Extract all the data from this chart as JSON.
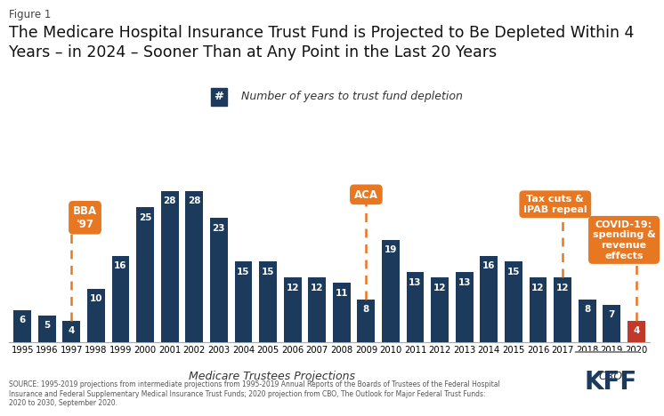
{
  "years": [
    "1995",
    "1996",
    "1997",
    "1998",
    "1999",
    "2000",
    "2001",
    "2002",
    "2003",
    "2004",
    "2005",
    "2006",
    "2007",
    "2008",
    "2009",
    "2010",
    "2011",
    "2012",
    "2013",
    "2014",
    "2015",
    "2016",
    "2017",
    "2018",
    "2019",
    "2020"
  ],
  "values": [
    6,
    5,
    4,
    10,
    16,
    25,
    28,
    28,
    23,
    15,
    15,
    12,
    12,
    11,
    8,
    19,
    13,
    12,
    13,
    16,
    15,
    12,
    12,
    8,
    7,
    4
  ],
  "bar_colors": [
    "#1b3a5c",
    "#1b3a5c",
    "#1b3a5c",
    "#1b3a5c",
    "#1b3a5c",
    "#1b3a5c",
    "#1b3a5c",
    "#1b3a5c",
    "#1b3a5c",
    "#1b3a5c",
    "#1b3a5c",
    "#1b3a5c",
    "#1b3a5c",
    "#1b3a5c",
    "#1b3a5c",
    "#1b3a5c",
    "#1b3a5c",
    "#1b3a5c",
    "#1b3a5c",
    "#1b3a5c",
    "#1b3a5c",
    "#1b3a5c",
    "#1b3a5c",
    "#1b3a5c",
    "#1b3a5c",
    "#c0392b"
  ],
  "figure_label": "Figure 1",
  "title_line1": "The Medicare Hospital Insurance Trust Fund is Projected to Be Depleted Within 4",
  "title_line2": "Years – in 2024 – Sooner Than at Any Point in the Last 20 Years",
  "legend_symbol": "#",
  "legend_text": "  Number of years to trust fund depletion",
  "xlabel": "Medicare Trustees Projections",
  "xlabel_right": "CBO",
  "source_text": "SOURCE: 1995-2019 projections from intermediate projections from 1995-2019 Annual Reports of the Boards of Trustees of the Federal Hospital\nInsurance and Federal Supplementary Medical Insurance Trust Funds; 2020 projection from CBO, The Outlook for Major Federal Trust Funds:\n2020 to 2030, September 2020.",
  "annotation_bba_label": "BBA\n'97",
  "annotation_bba_year_idx": 2,
  "annotation_aca_label": "ACA",
  "annotation_aca_year_idx": 14,
  "annotation_tax_label": "Tax cuts &\nIPAB repeal",
  "annotation_tax_year_idx": 22,
  "annotation_covid_label": "COVID-19:\nspending &\nrevenue\neffects",
  "annotation_covid_year_idx": 25,
  "orange_color": "#e87722",
  "dark_blue": "#1b3a5c",
  "red_color": "#c0392b",
  "bg_color": "#ffffff",
  "ylim": [
    0,
    34
  ],
  "bar_value_color": "#ffffff",
  "bar_value_fontsize": 7.5
}
